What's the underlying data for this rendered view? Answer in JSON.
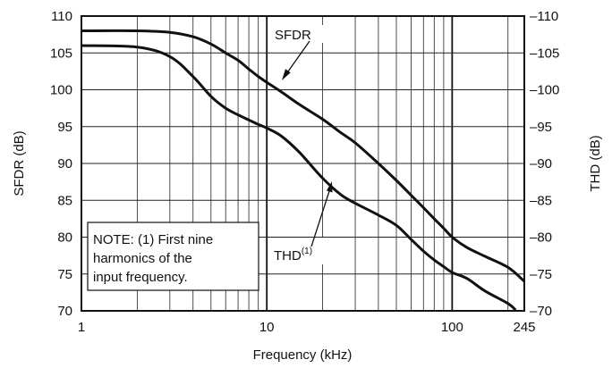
{
  "chart_data": {
    "type": "line",
    "xlabel": "Frequency (kHz)",
    "ylabel_left": "SFDR (dB)",
    "ylabel_right": "THD (dB)",
    "x_scale": "log",
    "xlim": [
      1,
      245
    ],
    "ylim_left": [
      70,
      110
    ],
    "ylim_right": [
      -70,
      -110
    ],
    "x_ticks": [
      1,
      10,
      100,
      245
    ],
    "x_tick_labels": [
      "1",
      "10",
      "100",
      "245"
    ],
    "y_ticks_left": [
      70,
      75,
      80,
      85,
      90,
      95,
      100,
      105,
      110
    ],
    "y_tick_labels_left": [
      "70",
      "75",
      "80",
      "85",
      "90",
      "95",
      "100",
      "105",
      "110"
    ],
    "y_tick_labels_right": [
      "–70",
      "–75",
      "–80",
      "–85",
      "–90",
      "–95",
      "–100",
      "–105",
      "–110"
    ],
    "grid": true,
    "series": [
      {
        "name": "SFDR",
        "label_text": "SFDR",
        "x": [
          1,
          2,
          3,
          4,
          5,
          6,
          7,
          8,
          9,
          10,
          12,
          15,
          20,
          25,
          30,
          40,
          50,
          60,
          70,
          80,
          90,
          100,
          120,
          150,
          200,
          245
        ],
        "values": [
          108,
          108,
          107.8,
          107.2,
          106.2,
          105,
          104,
          102.8,
          101.8,
          101,
          99.7,
          98,
          96,
          94.2,
          92.8,
          90,
          87.7,
          85.7,
          84,
          82.5,
          81.2,
          80,
          78.6,
          77.4,
          75.9,
          74
        ]
      },
      {
        "name": "THD",
        "label_text": "THD",
        "label_sup": "(1)",
        "x": [
          1,
          2,
          3,
          4,
          5,
          6,
          7,
          8,
          9,
          10,
          12,
          15,
          20,
          25,
          30,
          40,
          50,
          60,
          70,
          80,
          90,
          100,
          120,
          150,
          200,
          220
        ],
        "values": [
          106,
          105.8,
          104.5,
          101.8,
          99.1,
          97.5,
          96.6,
          95.9,
          95.3,
          94.8,
          93.7,
          91.5,
          88,
          85.8,
          84.6,
          83,
          81.6,
          79.7,
          78.1,
          76.9,
          76,
          75.2,
          74.4,
          72.7,
          71,
          70.1
        ]
      }
    ],
    "note": [
      "NOTE: (1) First nine",
      "harmonics of the",
      "input frequency."
    ]
  }
}
